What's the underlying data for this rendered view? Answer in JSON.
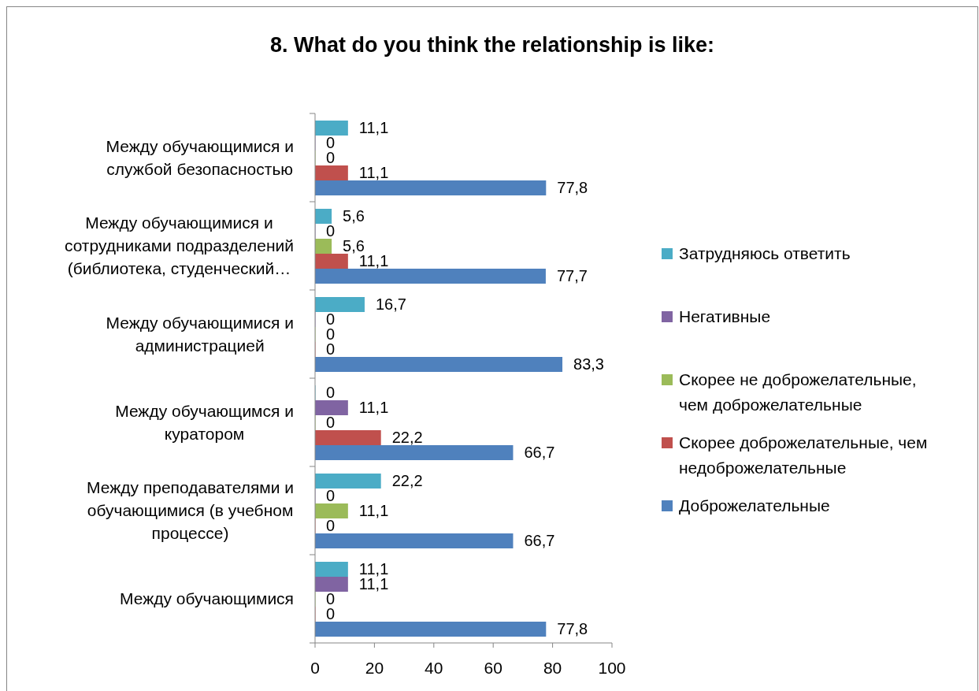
{
  "chart_data": {
    "type": "bar",
    "orientation": "horizontal",
    "title": "8. What do you think the relationship is like:",
    "categories": [
      "Между обучающимися и службой безопасностью",
      "Между обучающимися и сотрудниками подразделений (библиотека, студенческий…",
      "Между обучающимися и администрацией",
      "Между обучающимся и куратором",
      "Между преподавателями и обучающимися (в учебном процессе)",
      "Между обучающимися"
    ],
    "series": [
      {
        "name": "Доброжелательные",
        "color": "#4f81bd",
        "values": [
          77.8,
          77.7,
          83.3,
          66.7,
          66.7,
          77.8
        ],
        "value_labels": [
          "77,8",
          "77,7",
          "83,3",
          "66,7",
          "66,7",
          "77,8"
        ]
      },
      {
        "name": "Скорее доброжелательные, чем недоброжелательные",
        "color": "#c0504d",
        "values": [
          11.1,
          11.1,
          0,
          22.2,
          0,
          0
        ],
        "value_labels": [
          "11,1",
          "11,1",
          "0",
          "22,2",
          "0",
          "0"
        ]
      },
      {
        "name": "Скорее не доброжелательные, чем доброжелательные",
        "color": "#9bbb59",
        "values": [
          0,
          5.6,
          0,
          0,
          11.1,
          0
        ],
        "value_labels": [
          "0",
          "5,6",
          "0",
          "0",
          "11,1",
          "0"
        ]
      },
      {
        "name": "Негативные",
        "color": "#8064a2",
        "values": [
          0,
          0,
          0,
          11.1,
          0,
          11.1
        ],
        "value_labels": [
          "0",
          "0",
          "0",
          "11,1",
          "0",
          "11,1"
        ]
      },
      {
        "name": "Затрудняюсь ответить",
        "color": "#4bacc6",
        "values": [
          11.1,
          5.6,
          16.7,
          0,
          22.2,
          11.1
        ],
        "value_labels": [
          "11,1",
          "5,6",
          "16,7",
          "0",
          "22,2",
          "11,1"
        ]
      }
    ],
    "xlim": [
      0,
      100
    ],
    "xticks": [
      0,
      20,
      40,
      60,
      80,
      100
    ],
    "legend": "right"
  }
}
